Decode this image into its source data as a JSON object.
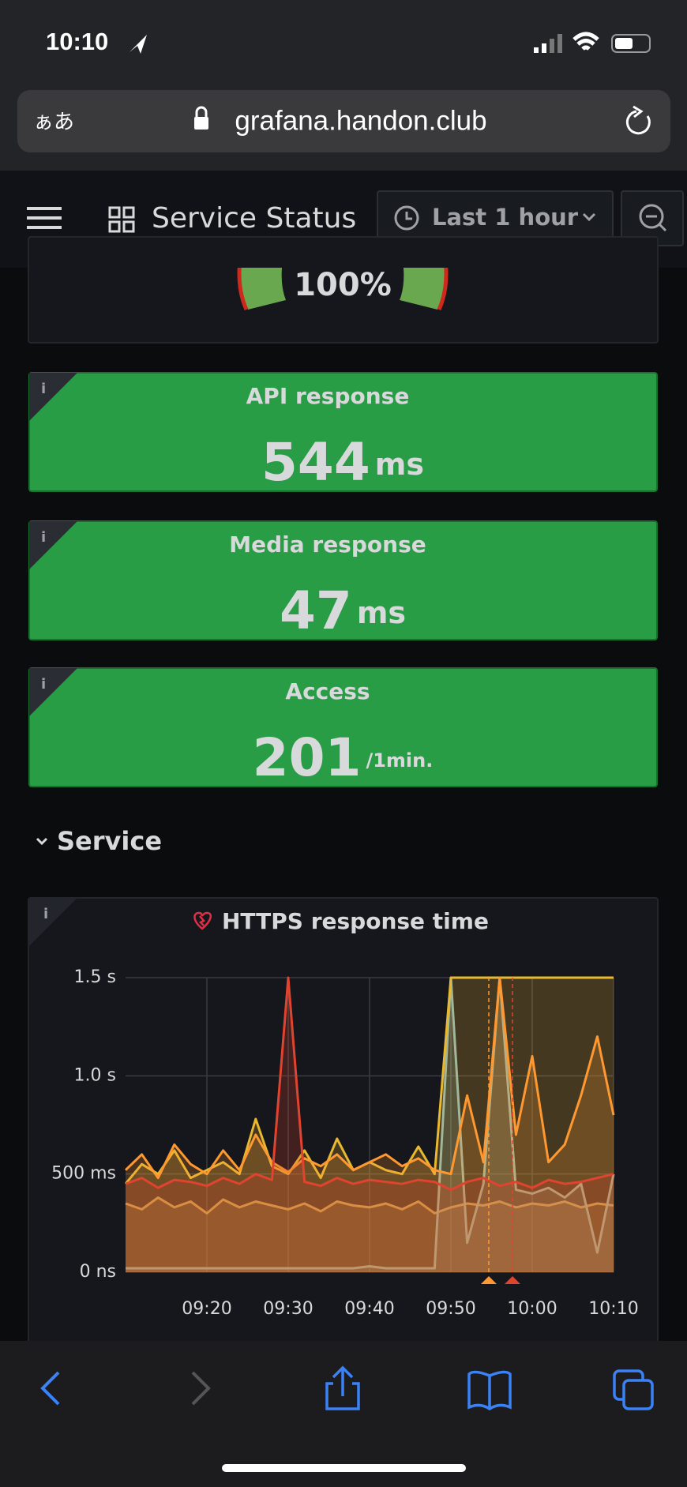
{
  "status_bar": {
    "time": "10:10"
  },
  "browser": {
    "text_size": "ぁあ",
    "url": "grafana.handon.club"
  },
  "header": {
    "title": "Service Status",
    "time_range": "Last 1 hour"
  },
  "gauge": {
    "value": "100%"
  },
  "stats": [
    {
      "title": "API response",
      "value": "544",
      "unit": "ms"
    },
    {
      "title": "Media response",
      "value": "47",
      "unit": "ms"
    },
    {
      "title": "Access",
      "value": "201",
      "unit": "/1min."
    }
  ],
  "row": {
    "title": "Service"
  },
  "panel": {
    "title": "HTTPS response time",
    "chart_data": {
      "type": "line",
      "x": [
        "09:10",
        "09:12",
        "09:14",
        "09:16",
        "09:18",
        "09:20",
        "09:22",
        "09:24",
        "09:26",
        "09:28",
        "09:30",
        "09:32",
        "09:34",
        "09:36",
        "09:38",
        "09:40",
        "09:42",
        "09:44",
        "09:46",
        "09:48",
        "09:50",
        "09:52",
        "09:54",
        "09:56",
        "09:58",
        "10:00",
        "10:02",
        "10:04",
        "10:06",
        "10:08",
        "10:10"
      ],
      "series": [
        {
          "color": "#c8a35a",
          "values": [
            350,
            320,
            380,
            330,
            360,
            300,
            370,
            330,
            360,
            340,
            320,
            350,
            310,
            360,
            340,
            330,
            350,
            320,
            360,
            300,
            330,
            350,
            340,
            360,
            330,
            350,
            340,
            360,
            330,
            350,
            340
          ]
        },
        {
          "color": "#8fb8b8",
          "values": [
            20,
            20,
            20,
            20,
            20,
            20,
            20,
            20,
            20,
            20,
            20,
            20,
            20,
            20,
            20,
            30,
            20,
            20,
            20,
            20,
            1500,
            150,
            450,
            1500,
            420,
            400,
            430,
            380,
            450,
            100,
            500
          ]
        },
        {
          "color": "#e8b830",
          "values": [
            450,
            550,
            500,
            620,
            480,
            520,
            560,
            500,
            780,
            540,
            500,
            620,
            480,
            680,
            520,
            560,
            520,
            500,
            640,
            500,
            1500,
            1500,
            1500,
            1500,
            1500,
            1500,
            1500,
            1500,
            1500,
            1500,
            1500
          ]
        },
        {
          "color": "#ff9830",
          "values": [
            520,
            600,
            480,
            650,
            550,
            500,
            620,
            520,
            700,
            560,
            510,
            580,
            540,
            600,
            520,
            560,
            600,
            540,
            580,
            520,
            500,
            900,
            560,
            1500,
            700,
            1100,
            560,
            650,
            900,
            1200,
            800
          ]
        },
        {
          "color": "#e0442f",
          "values": [
            450,
            480,
            430,
            470,
            460,
            440,
            480,
            450,
            500,
            470,
            1500,
            460,
            440,
            480,
            450,
            470,
            460,
            450,
            470,
            460,
            420,
            460,
            480,
            440,
            460,
            430,
            470,
            450,
            460,
            480,
            500
          ]
        }
      ],
      "xlim": [
        "09:10",
        "10:10"
      ],
      "xticks": [
        "09:20",
        "09:30",
        "09:40",
        "09:50",
        "10:00",
        "10:10"
      ],
      "ylim": [
        0,
        1500
      ],
      "yticks": [
        {
          "value": 0,
          "label": "0 ns"
        },
        {
          "value": 500,
          "label": "500 ms"
        },
        {
          "value": 1000,
          "label": "1.0 s"
        },
        {
          "value": 1500,
          "label": "1.5 s"
        }
      ],
      "grid": true
    }
  }
}
